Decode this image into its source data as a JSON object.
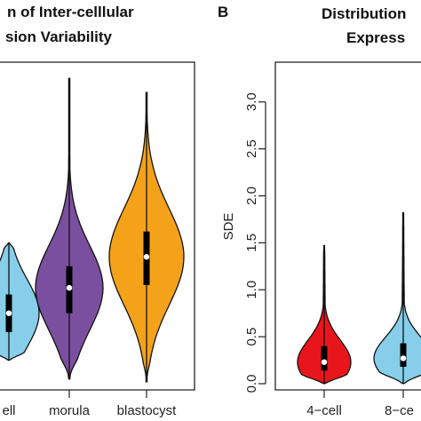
{
  "chart_data": [
    {
      "panel": "",
      "type": "violin",
      "title": [
        "n of Inter-celllular",
        "sion Variability"
      ],
      "categories": [
        "ell",
        "morula",
        "blastocyst"
      ],
      "colors": [
        "#87ceeb",
        "#7b4fa0",
        "#f5a21b"
      ],
      "ylim": [
        0,
        3.3
      ],
      "violins": [
        {
          "name": "ell",
          "min": 0.25,
          "q1": 0.55,
          "median": 0.75,
          "q3": 0.95,
          "max": 1.5,
          "color": "#87ceeb"
        },
        {
          "name": "morula",
          "min": 0.05,
          "q1": 0.75,
          "median": 1.02,
          "q3": 1.25,
          "max": 3.25,
          "color": "#7b4fa0"
        },
        {
          "name": "blastocyst",
          "min": 0.02,
          "q1": 1.05,
          "median": 1.35,
          "q3": 1.62,
          "max": 3.1,
          "color": "#f5a21b"
        }
      ]
    },
    {
      "panel": "B",
      "type": "violin",
      "title": [
        "Distribution",
        "Express"
      ],
      "ylabel": "SDE",
      "categories": [
        "4−cell",
        "8−ce"
      ],
      "yticks": [
        "0.0",
        "0.5",
        "1.0",
        "1.5",
        "2.0",
        "2.5",
        "3.0"
      ],
      "ylim": [
        0,
        3.3
      ],
      "violins": [
        {
          "name": "4−cell",
          "min": 0.0,
          "q1": 0.14,
          "median": 0.23,
          "q3": 0.4,
          "max": 1.47,
          "color": "#e8161c"
        },
        {
          "name": "8−ce",
          "min": 0.0,
          "q1": 0.18,
          "median": 0.27,
          "q3": 0.43,
          "max": 1.82,
          "color": "#87ceeb"
        }
      ]
    }
  ]
}
